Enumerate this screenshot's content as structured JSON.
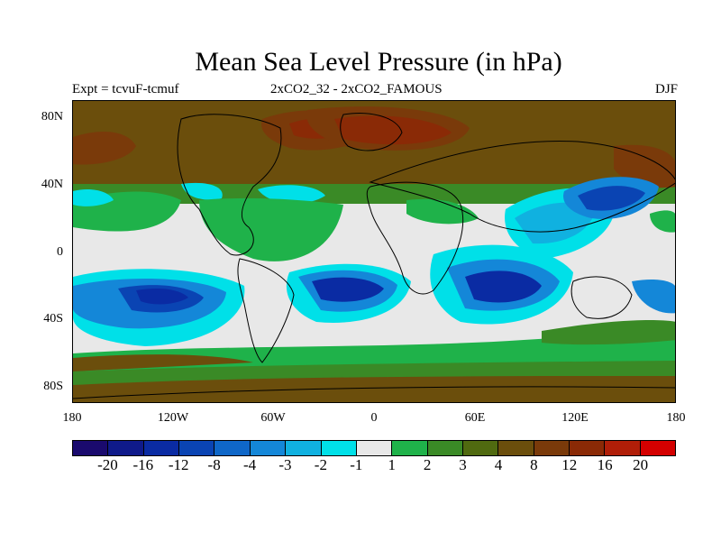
{
  "title": "Mean Sea Level Pressure (in hPa)",
  "experiment_label": "Expt = tcvuF-tcmuf",
  "comparison_label": "2xCO2_32 - 2xCO2_FAMOUS",
  "season_label": "DJF",
  "y_axis": {
    "labels": [
      "80N",
      "40N",
      "0",
      "40S",
      "80S"
    ],
    "latitudes": [
      80,
      40,
      0,
      -40,
      -80
    ]
  },
  "x_axis": {
    "labels": [
      "180",
      "120W",
      "60W",
      "0",
      "60E",
      "120E",
      "180"
    ],
    "longitudes": [
      -180,
      -120,
      -60,
      0,
      60,
      120,
      180
    ]
  },
  "colorbar": {
    "colors": [
      "#1a0a6e",
      "#0f1a8a",
      "#0a2ba3",
      "#0a44b3",
      "#0f67c8",
      "#1487d8",
      "#10b1e0",
      "#00e0e8",
      "#e8e8e8",
      "#1fb24a",
      "#3a8a26",
      "#506a10",
      "#6b4e0c",
      "#7a3a0a",
      "#8a2a06",
      "#b01e08",
      "#d40000"
    ],
    "labels": [
      "-20",
      "-16",
      "-12",
      "-8",
      "-4",
      "-3",
      "-2",
      "-1",
      "1",
      "2",
      "3",
      "4",
      "8",
      "12",
      "16",
      "20"
    ]
  }
}
